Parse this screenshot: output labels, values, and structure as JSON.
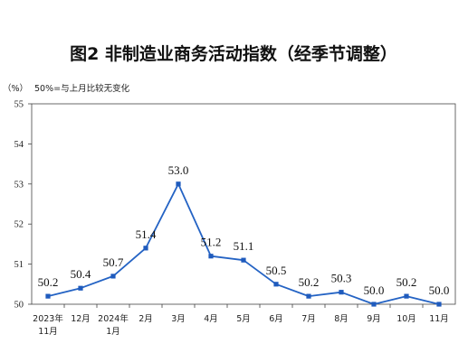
{
  "chart_data": {
    "type": "line",
    "title": "图2 非制造业商务活动指数（经季节调整）",
    "ylabel": "（%）",
    "annotation": "50%=与上月比较无变化",
    "categories": [
      [
        "2023年",
        "11月"
      ],
      [
        "12月"
      ],
      [
        "2024年",
        "1月"
      ],
      [
        "2月"
      ],
      [
        "3月"
      ],
      [
        "4月"
      ],
      [
        "5月"
      ],
      [
        "6月"
      ],
      [
        "7月"
      ],
      [
        "8月"
      ],
      [
        "9月"
      ],
      [
        "10月"
      ],
      [
        "11月"
      ]
    ],
    "series": [
      {
        "values": [
          50.2,
          50.4,
          50.7,
          51.4,
          53.0,
          51.2,
          51.1,
          50.5,
          50.2,
          50.3,
          50.0,
          50.2,
          50.0
        ],
        "color": "#2463c4"
      }
    ],
    "data_labels": [
      "50.2",
      "50.4",
      "50.7",
      "51.4",
      "53.0",
      "51.2",
      "51.1",
      "50.5",
      "50.2",
      "50.3",
      "50.0",
      "50.2",
      "50.0"
    ],
    "yticks": [
      "50",
      "51",
      "52",
      "53",
      "54",
      "55"
    ],
    "ylim": [
      50,
      55
    ],
    "grid": false,
    "legend": "none"
  }
}
